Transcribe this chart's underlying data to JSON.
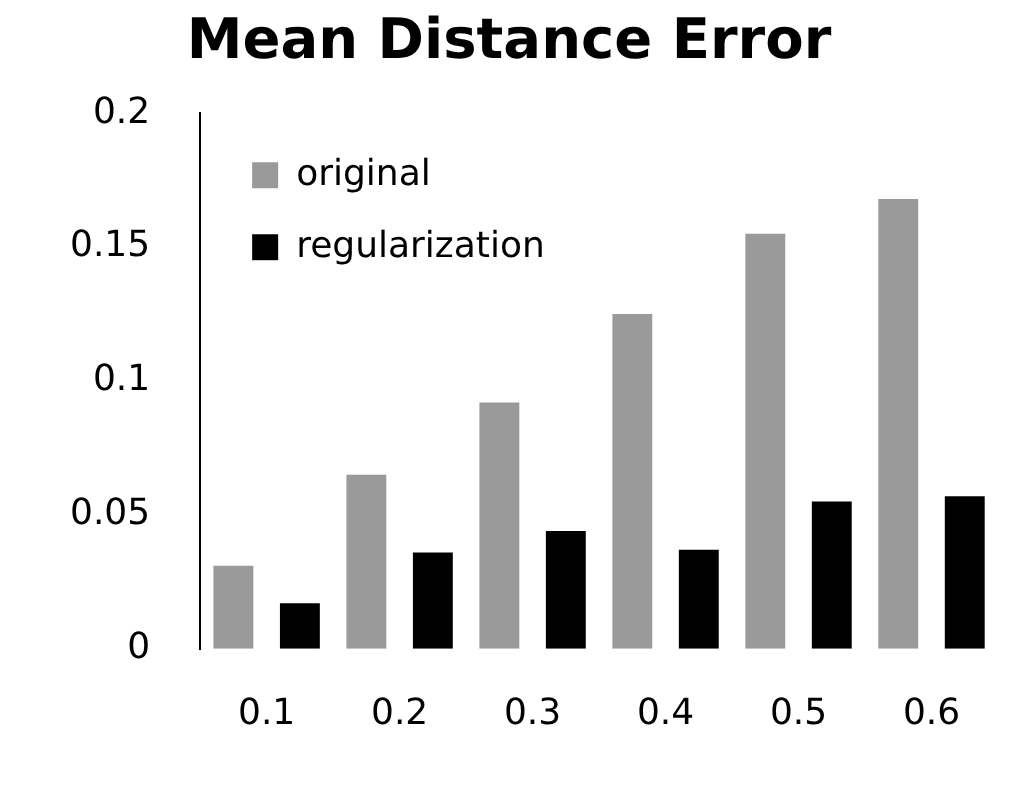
{
  "chart_data": {
    "type": "bar",
    "title": "Mean Distance Error",
    "categories": [
      "0.1",
      "0.2",
      "0.3",
      "0.4",
      "0.5",
      "0.6"
    ],
    "series": [
      {
        "name": "original",
        "color": "#9a9a9a",
        "values": [
          0.031,
          0.065,
          0.092,
          0.125,
          0.155,
          0.168
        ]
      },
      {
        "name": "regularization",
        "color": "#000000",
        "values": [
          0.017,
          0.036,
          0.044,
          0.037,
          0.055,
          0.057
        ]
      }
    ],
    "ylim": [
      0,
      0.2
    ],
    "yticks": [
      0,
      0.05,
      0.1,
      0.15,
      0.2
    ],
    "grid": false,
    "legend": "top left"
  }
}
